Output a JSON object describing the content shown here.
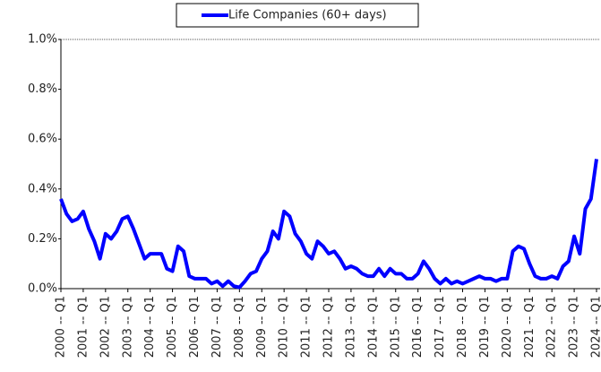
{
  "chart_data": {
    "type": "line",
    "categories": [
      "2000 -- Q1",
      null,
      null,
      null,
      "2001 -- Q1",
      null,
      null,
      null,
      "2002 -- Q1",
      null,
      null,
      null,
      "2003 -- Q1",
      null,
      null,
      null,
      "2004 -- Q1",
      null,
      null,
      null,
      "2005 -- Q1",
      null,
      null,
      null,
      "2006 -- Q1",
      null,
      null,
      null,
      "2007 -- Q1",
      null,
      null,
      null,
      "2008 -- Q1",
      null,
      null,
      null,
      "2009 -- Q1",
      null,
      null,
      null,
      "2010 -- Q1",
      null,
      null,
      null,
      "2011 -- Q1",
      null,
      null,
      null,
      "2012 -- Q1",
      null,
      null,
      null,
      "2013 -- Q1",
      null,
      null,
      null,
      "2014 -- Q1",
      null,
      null,
      null,
      "2015 -- Q1",
      null,
      null,
      null,
      "2016 -- Q1",
      null,
      null,
      null,
      "2017 -- Q1",
      null,
      null,
      null,
      "2018 -- Q1",
      null,
      null,
      null,
      "2019 -- Q1",
      null,
      null,
      null,
      "2020 -- Q1",
      null,
      null,
      null,
      "2021 -- Q1",
      null,
      null,
      null,
      "2022 -- Q1",
      null,
      null,
      null,
      "2023 -- Q1",
      null,
      null,
      null,
      "2024 -- Q1"
    ],
    "series": [
      {
        "name": "Life Companies (60+ days)",
        "color": "#0000ff",
        "values": [
          0.36,
          0.3,
          0.27,
          0.28,
          0.31,
          0.24,
          0.19,
          0.12,
          0.22,
          0.2,
          0.23,
          0.28,
          0.29,
          0.24,
          0.18,
          0.12,
          0.14,
          0.14,
          0.14,
          0.08,
          0.07,
          0.17,
          0.15,
          0.05,
          0.04,
          0.04,
          0.04,
          0.02,
          0.03,
          0.01,
          0.03,
          0.01,
          0.005,
          0.03,
          0.06,
          0.07,
          0.12,
          0.15,
          0.23,
          0.2,
          0.31,
          0.29,
          0.22,
          0.19,
          0.14,
          0.12,
          0.19,
          0.17,
          0.14,
          0.15,
          0.12,
          0.08,
          0.09,
          0.08,
          0.06,
          0.05,
          0.05,
          0.08,
          0.05,
          0.08,
          0.06,
          0.06,
          0.04,
          0.04,
          0.06,
          0.11,
          0.08,
          0.04,
          0.02,
          0.04,
          0.02,
          0.03,
          0.02,
          0.03,
          0.04,
          0.05,
          0.04,
          0.04,
          0.03,
          0.04,
          0.04,
          0.15,
          0.17,
          0.16,
          0.1,
          0.05,
          0.04,
          0.04,
          0.05,
          0.04,
          0.09,
          0.11,
          0.21,
          0.14,
          0.32,
          0.36,
          0.52
        ]
      }
    ],
    "ylim": [
      0,
      1.0
    ],
    "yticks": [
      {
        "value": 0,
        "label": "0.0%"
      },
      {
        "value": 0.2,
        "label": "0.2%"
      },
      {
        "value": 0.4,
        "label": "0.4%"
      },
      {
        "value": 0.6,
        "label": "0.6%"
      },
      {
        "value": 0.8,
        "label": "0.8%"
      },
      {
        "value": 1.0,
        "label": "1.0%"
      }
    ],
    "grid": false,
    "legend": "top"
  }
}
